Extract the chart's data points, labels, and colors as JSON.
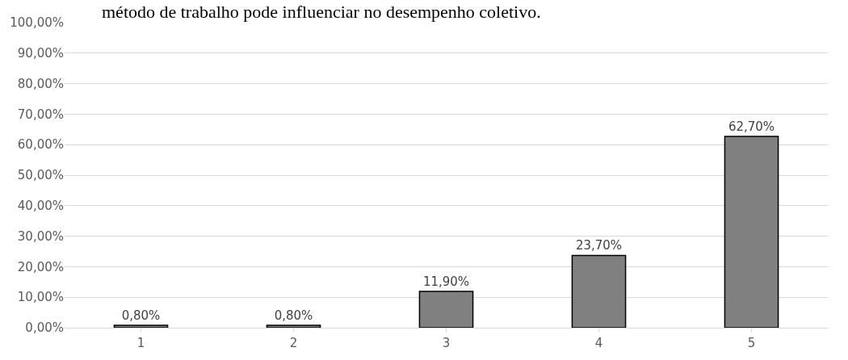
{
  "chart_data": {
    "type": "bar",
    "title": "método de trabalho pode influenciar no desempenho coletivo.",
    "categories": [
      "1",
      "2",
      "3",
      "4",
      "5"
    ],
    "values": [
      0.8,
      0.8,
      11.9,
      23.7,
      62.7
    ],
    "value_labels": [
      "0,80%",
      "0,80%",
      "11,90%",
      "23,70%",
      "62,70%"
    ],
    "color": "#808080",
    "ylim": [
      0,
      100
    ],
    "yticks": [
      {
        "value": 0,
        "label": "0,00%"
      },
      {
        "value": 10,
        "label": "10,00%"
      },
      {
        "value": 20,
        "label": "20,00%"
      },
      {
        "value": 30,
        "label": "30,00%"
      },
      {
        "value": 40,
        "label": "40,00%"
      },
      {
        "value": 50,
        "label": "50,00%"
      },
      {
        "value": 60,
        "label": "60,00%"
      },
      {
        "value": 70,
        "label": "70,00%"
      },
      {
        "value": 80,
        "label": "80,00%"
      },
      {
        "value": 90,
        "label": "90,00%"
      },
      {
        "value": 100,
        "label": "100,00%"
      }
    ],
    "grid": "y"
  }
}
